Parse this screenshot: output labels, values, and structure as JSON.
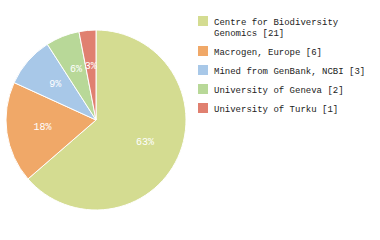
{
  "chart_data": {
    "type": "pie",
    "categories": [
      "Centre for Biodiversity\nGenomics [21]",
      "Macrogen, Europe [6]",
      "Mined from GenBank, NCBI [3]",
      "University of Geneva [2]",
      "University of Turku [1]"
    ],
    "values": [
      63,
      18,
      9,
      6,
      3
    ],
    "value_labels": [
      "63%",
      "18%",
      "9%",
      "6%",
      "3%"
    ],
    "colors": [
      "#d4dc91",
      "#f0a868",
      "#a8c8e8",
      "#b8d898",
      "#e08070"
    ],
    "data_labels": true,
    "legend": "right"
  }
}
